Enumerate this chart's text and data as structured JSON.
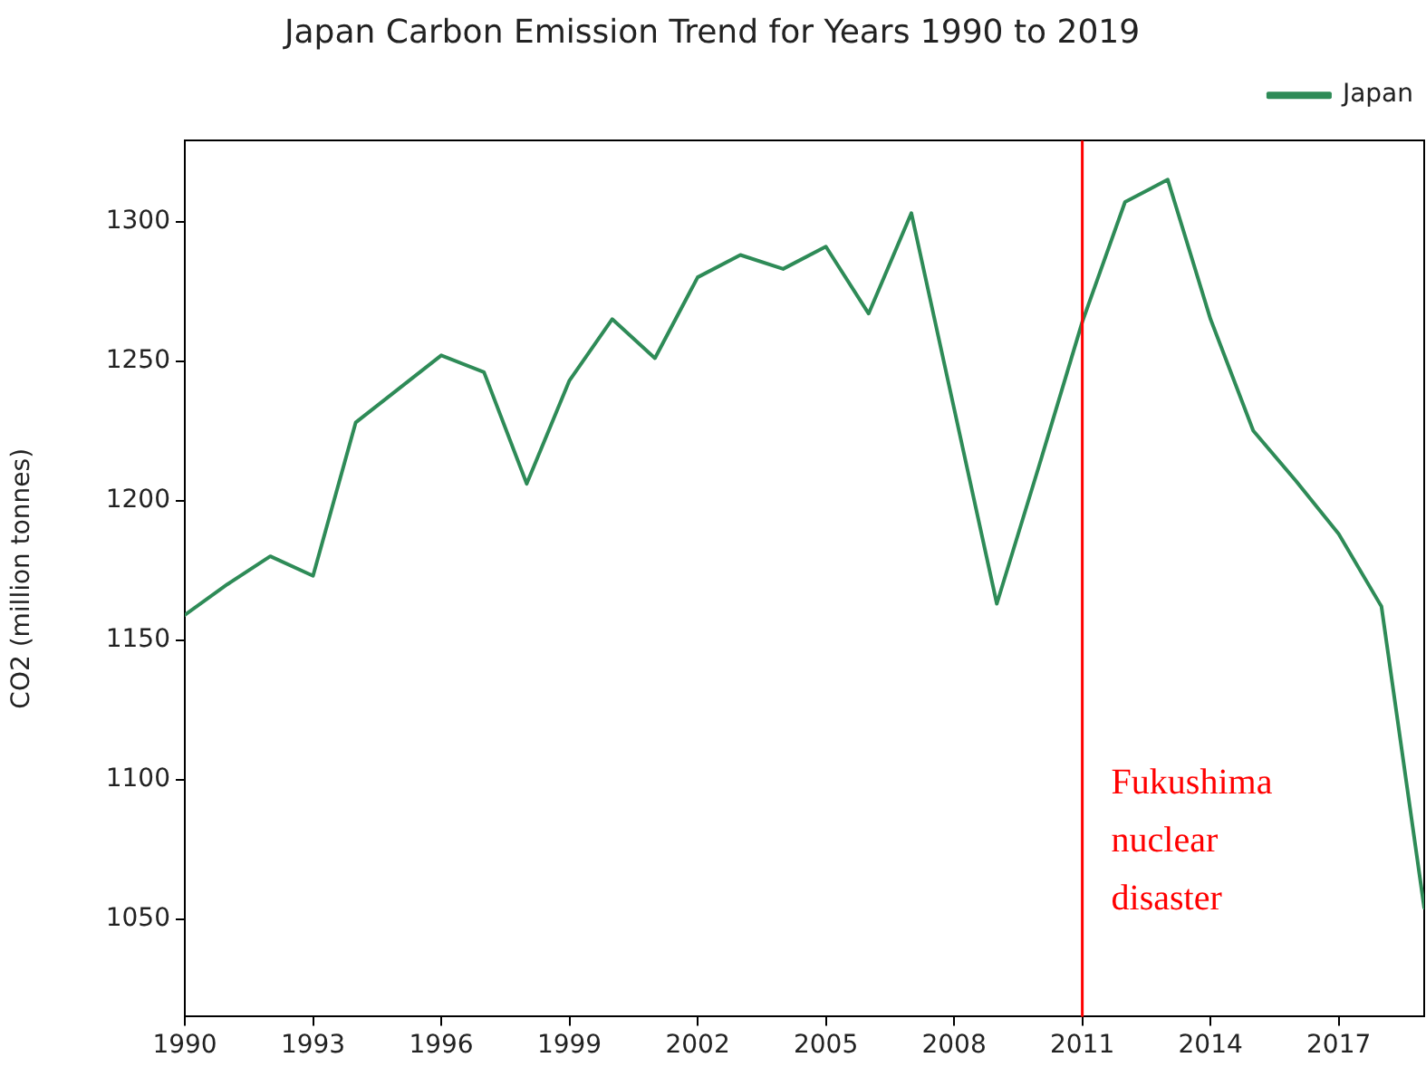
{
  "chart_data": {
    "type": "line",
    "title": "Japan Carbon Emission Trend for Years 1990 to 2019",
    "ylabel": "CO2 (million tonnes)",
    "x": [
      1990,
      1991,
      1992,
      1993,
      1994,
      1995,
      1996,
      1997,
      1998,
      1999,
      2000,
      2001,
      2002,
      2003,
      2004,
      2005,
      2006,
      2007,
      2008,
      2009,
      2010,
      2011,
      2012,
      2013,
      2014,
      2015,
      2016,
      2017,
      2018,
      2019
    ],
    "series": [
      {
        "name": "Japan",
        "color": "#2e8b57",
        "values": [
          1159,
          1170,
          1180,
          1173,
          1228,
          1240,
          1252,
          1246,
          1206,
          1243,
          1265,
          1251,
          1280,
          1288,
          1283,
          1291,
          1267,
          1303,
          1233,
          1163,
          1213,
          1264,
          1307,
          1315,
          1265,
          1225,
          1207,
          1188,
          1162,
          1054
        ]
      }
    ],
    "xlim": [
      1990,
      2019
    ],
    "xticks": [
      1990,
      1993,
      1996,
      1999,
      2002,
      2005,
      2008,
      2011,
      2014,
      2017
    ],
    "ylim": [
      1015,
      1329
    ],
    "yticks": [
      1050,
      1100,
      1150,
      1200,
      1250,
      1300
    ],
    "ref_lines": [
      {
        "axis": "x",
        "value": 2011,
        "label": "Fukushima nuclear disaster",
        "color": "#ff0000"
      }
    ],
    "grid": false,
    "legend": "top right",
    "marker": "none",
    "line_style": "solid"
  }
}
